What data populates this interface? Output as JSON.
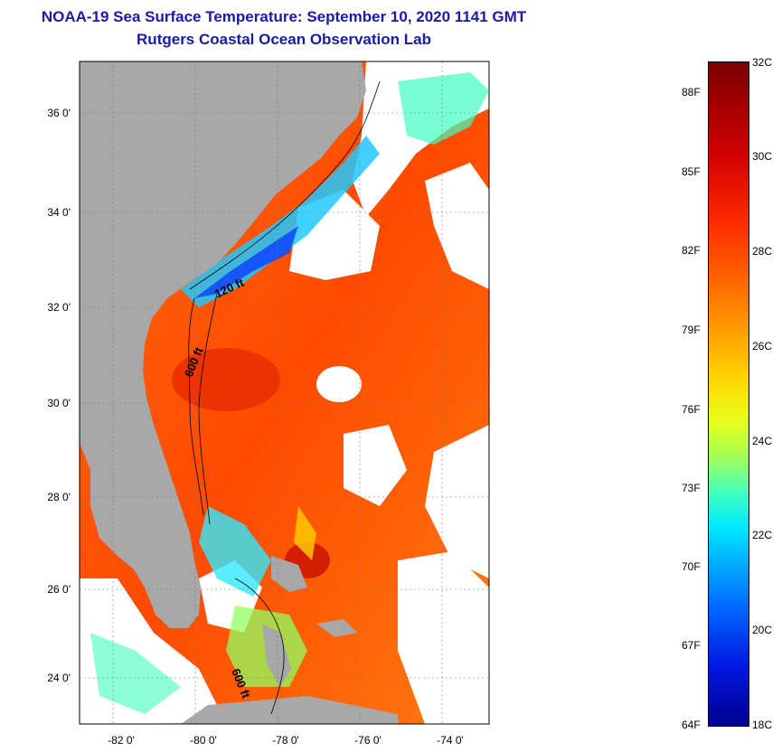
{
  "title": {
    "line1": "NOAA-19 Sea Surface Temperature:  September 10, 2020 1141 GMT",
    "line2": "Rutgers Coastal Ocean Observation Lab"
  },
  "map": {
    "lat_ticks": [
      "36 0'",
      "34 0'",
      "32 0'",
      "30 0'",
      "28 0'",
      "26 0'",
      "24 0'"
    ],
    "lon_ticks": [
      "-82 0'",
      "-80 0'",
      "-78 0'",
      "-76 0'",
      "-74 0'"
    ],
    "contour_labels": [
      "120 ft",
      "600 ft",
      "600 ft"
    ]
  },
  "colorbar": {
    "fahrenheit": [
      "88F",
      "85F",
      "82F",
      "79F",
      "76F",
      "73F",
      "70F",
      "67F",
      "64F"
    ],
    "celsius": [
      "32C",
      "30C",
      "28C",
      "26C",
      "24C",
      "22C",
      "20C",
      "18C"
    ]
  },
  "colors": {
    "land": "#a8a8a8",
    "title": "#1a1aa8"
  }
}
